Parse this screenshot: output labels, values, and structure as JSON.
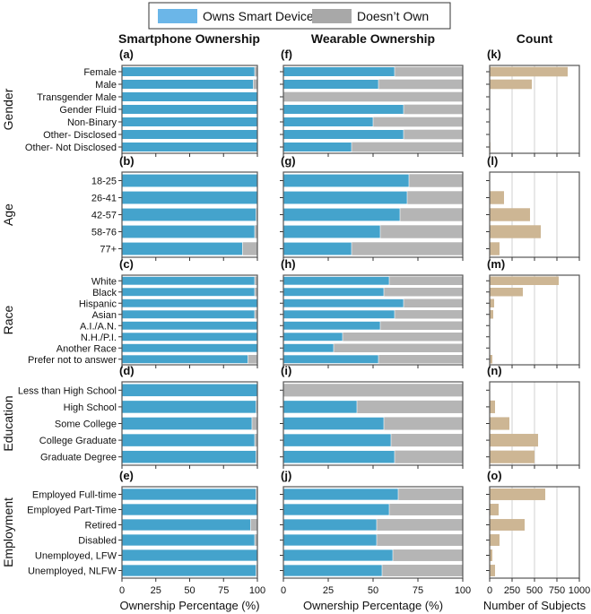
{
  "legend": {
    "items": [
      {
        "label": "Owns Smart Device",
        "color": "#44a3cc"
      },
      {
        "label": "Doesn’t Own",
        "color": "#b5b5b5"
      }
    ],
    "placement": "top-center"
  },
  "colors": {
    "owns": "#44a3cc",
    "not_own": "#b5b5b5",
    "count": "#cdb694"
  },
  "columns": [
    "Smartphone Ownership",
    "Wearable Ownership",
    "Count"
  ],
  "chart_data": {
    "type": "bar",
    "orientation": "horizontal",
    "xlabels": [
      "Ownership Percentage (%)",
      "Ownership Percentage (%)",
      "Number of Subjects"
    ],
    "xlim_pct": [
      0,
      100
    ],
    "xticks_pct": [
      0,
      25,
      50,
      75,
      100
    ],
    "xlim_count": [
      0,
      1000
    ],
    "xticks_count": [
      0,
      250,
      500,
      750,
      1000
    ],
    "groups": [
      {
        "name": "Gender",
        "panels": [
          "(a)",
          "(f)",
          "(k)"
        ],
        "categories": [
          "Female",
          "Male",
          "Transgender Male",
          "Gender Fluid",
          "Non-Binary",
          "Other- Disclosed",
          "Other- Not Disclosed"
        ],
        "smartphone": [
          98,
          97,
          100,
          100,
          100,
          100,
          100
        ],
        "wearable": [
          62,
          53,
          0,
          67,
          50,
          67,
          38
        ],
        "count": [
          870,
          470,
          1,
          3,
          4,
          3,
          8
        ]
      },
      {
        "name": "Age",
        "panels": [
          "(b)",
          "(g)",
          "(l)"
        ],
        "categories": [
          "18-25",
          "26-41",
          "42-57",
          "58-76",
          "77+"
        ],
        "smartphone": [
          100,
          100,
          99,
          98,
          89
        ],
        "wearable": [
          70,
          69,
          65,
          54,
          38
        ],
        "count": [
          5,
          160,
          450,
          570,
          110
        ]
      },
      {
        "name": "Race",
        "panels": [
          "(c)",
          "(h)",
          "(m)"
        ],
        "categories": [
          "White",
          "Black",
          "Hispanic",
          "Asian",
          "A.I./A.N.",
          "N.H./P.I.",
          "Another Race",
          "Prefer not to answer"
        ],
        "smartphone": [
          98,
          98,
          100,
          98,
          100,
          100,
          100,
          93
        ],
        "wearable": [
          59,
          56,
          67,
          62,
          54,
          33,
          28,
          53
        ],
        "count": [
          770,
          370,
          50,
          40,
          3,
          3,
          3,
          30
        ]
      },
      {
        "name": "Education",
        "panels": [
          "(d)",
          "(i)",
          "(n)"
        ],
        "categories": [
          "Less than High School",
          "High School",
          "Some College",
          "College Graduate",
          "Graduate Degree"
        ],
        "smartphone": [
          100,
          99,
          96,
          98,
          99
        ],
        "wearable": [
          0,
          41,
          56,
          60,
          62
        ],
        "count": [
          3,
          60,
          220,
          540,
          500
        ]
      },
      {
        "name": "Employment",
        "panels": [
          "(e)",
          "(j)",
          "(o)"
        ],
        "categories": [
          "Employed Full-time",
          "Employed Part-Time",
          "Retired",
          "Disabled",
          "Unemployed, LFW",
          "Unemployed, NLFW"
        ],
        "smartphone": [
          99,
          100,
          95,
          98,
          100,
          99
        ],
        "wearable": [
          64,
          59,
          52,
          52,
          61,
          55
        ],
        "count": [
          620,
          100,
          390,
          110,
          30,
          60
        ]
      }
    ]
  }
}
